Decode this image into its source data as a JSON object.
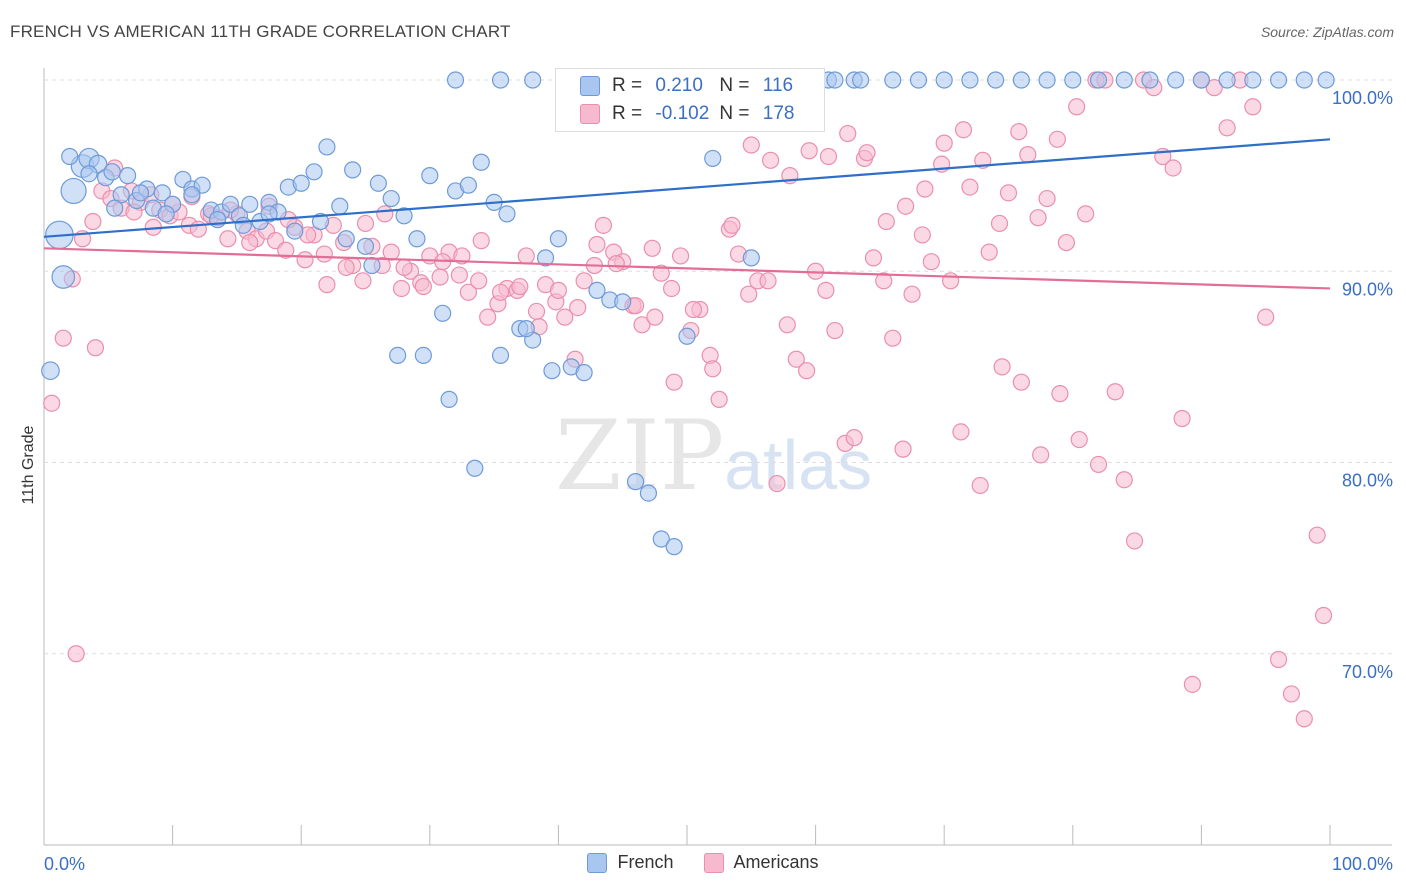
{
  "header": {
    "title": "FRENCH VS AMERICAN 11TH GRADE CORRELATION CHART",
    "source": "Source: ZipAtlas.com"
  },
  "watermark": {
    "zip": "ZIP",
    "atlas": "atlas"
  },
  "legend": {
    "rows": [
      {
        "r_label": "R =",
        "r_value": "0.210",
        "n_label": "N =",
        "n_value": "116"
      },
      {
        "r_label": "R =",
        "r_value": "-0.102",
        "n_label": "N =",
        "n_value": "178"
      }
    ]
  },
  "bottom_legend": {
    "french": "French",
    "americans": "Americans"
  },
  "colors": {
    "french_fill": "#a9c6f0",
    "french_stroke": "#6e9bd8",
    "french_line": "#2f6fc9",
    "american_fill": "#f7b9cd",
    "american_stroke": "#ea8fae",
    "american_line": "#e26d97",
    "tick_label": "#3a6fc4",
    "grid": "#dddddd",
    "axis": "#bbbbbb"
  },
  "chart_data": {
    "type": "scatter",
    "title": "FRENCH VS AMERICAN 11TH GRADE CORRELATION CHART",
    "xlabel": "",
    "ylabel": "11th Grade",
    "xlim": [
      0,
      100
    ],
    "ylim": [
      59.5,
      101
    ],
    "x_tick_labels": [
      "0.0%",
      "100.0%"
    ],
    "y_ticks": [
      {
        "value": 100,
        "label": "100.0%"
      },
      {
        "value": 90,
        "label": "90.0%"
      },
      {
        "value": 80,
        "label": "80.0%"
      },
      {
        "value": 70,
        "label": "70.0%"
      }
    ],
    "trendlines": [
      {
        "series": "French",
        "x": [
          0,
          100
        ],
        "y": [
          91.8,
          96.9
        ]
      },
      {
        "series": "Americans",
        "x": [
          0,
          100
        ],
        "y": [
          91.2,
          89.1
        ]
      }
    ],
    "series": [
      {
        "name": "French",
        "x": [
          0.5,
          1.2,
          1.5,
          2.3,
          3.0,
          3.5,
          4.2,
          4.8,
          5.3,
          6.0,
          6.5,
          7.2,
          8.0,
          8.5,
          9.2,
          10.0,
          10.8,
          11.5,
          12.3,
          13.0,
          13.8,
          14.5,
          15.2,
          16.0,
          16.8,
          17.5,
          18.2,
          19.0,
          20.0,
          21.0,
          22.0,
          23.0,
          24.0,
          25.0,
          26.0,
          27.0,
          28.0,
          29.0,
          30.0,
          31.0,
          32.0,
          33.0,
          34.0,
          35.0,
          36.0,
          37.0,
          38.0,
          39.0,
          40.0,
          41.0,
          42.0,
          43.0,
          44.0,
          45.0,
          46.0,
          47.0,
          48.0,
          49.0,
          50.0,
          52.0,
          55.0,
          57.0,
          59.0,
          61.0,
          63.0,
          32.0,
          35.5,
          38.0,
          42.5,
          45.0,
          47.5,
          50.0,
          51.5,
          55.5,
          57.5,
          59.5,
          61.5,
          63.5,
          66.0,
          68.0,
          70.0,
          72.0,
          74.0,
          76.0,
          78.0,
          80.0,
          82.0,
          84.0,
          86.0,
          88.0,
          90.0,
          92.0,
          94.0,
          96.0,
          98.0,
          99.7,
          2.0,
          3.5,
          5.5,
          7.5,
          9.5,
          11.5,
          13.5,
          15.5,
          17.5,
          19.5,
          21.5,
          23.5,
          25.5,
          27.5,
          29.5,
          31.5,
          33.5,
          35.5,
          37.5,
          39.5
        ],
        "y": [
          84.8,
          91.9,
          89.7,
          94.2,
          95.5,
          95.9,
          95.6,
          94.9,
          95.2,
          94.0,
          95.0,
          93.7,
          94.3,
          93.3,
          94.1,
          93.5,
          94.8,
          94.3,
          94.5,
          93.2,
          93.1,
          93.5,
          92.9,
          93.5,
          92.6,
          93.6,
          93.1,
          94.4,
          94.6,
          95.2,
          96.5,
          93.4,
          95.3,
          91.3,
          94.6,
          93.8,
          92.9,
          91.7,
          95.0,
          87.8,
          94.2,
          94.5,
          95.7,
          93.6,
          93.0,
          87.0,
          86.4,
          90.7,
          91.7,
          85.0,
          84.7,
          89.0,
          88.5,
          88.4,
          79.0,
          78.4,
          76.0,
          75.6,
          86.6,
          95.9,
          90.7,
          100,
          100,
          100,
          100,
          100,
          100,
          100,
          100,
          100,
          100,
          100,
          100,
          100,
          100,
          100,
          100,
          100,
          100,
          100,
          100,
          100,
          100,
          100,
          100,
          100,
          100,
          100,
          100,
          100,
          100,
          100,
          100,
          100,
          100,
          100,
          96.0,
          95.1,
          93.3,
          94.1,
          93.0,
          94.0,
          92.7,
          92.4,
          93.0,
          92.1,
          92.6,
          91.7,
          90.3,
          85.6,
          85.6,
          83.3,
          79.7,
          85.6,
          87.0,
          84.8
        ],
        "sizes": [
          14,
          22,
          18,
          20,
          18,
          16,
          14,
          13,
          13,
          12,
          12,
          12,
          12,
          12,
          12,
          12,
          12,
          12,
          12,
          12,
          12,
          12,
          12,
          12,
          12,
          12,
          12,
          12,
          12,
          12,
          12,
          12,
          12,
          12,
          12,
          12,
          12,
          12,
          12,
          12,
          12,
          12,
          12,
          12,
          12,
          12,
          12,
          12,
          12,
          12,
          12,
          12,
          12,
          12,
          12,
          12,
          12,
          12,
          12,
          12,
          12,
          12,
          12,
          12,
          12,
          12,
          12,
          12,
          12,
          12,
          12,
          12,
          12,
          12,
          12,
          12,
          12,
          12,
          12,
          12,
          12,
          12,
          12,
          12,
          12,
          12,
          12,
          12,
          12,
          12,
          12,
          12,
          12,
          12,
          12,
          12,
          12,
          12,
          12,
          12,
          12,
          12,
          12,
          12,
          12,
          12,
          12,
          12,
          12,
          12,
          12,
          12,
          12,
          12,
          12,
          12
        ]
      },
      {
        "name": "Americans",
        "x": [
          0.6,
          1.5,
          2.2,
          3.0,
          3.8,
          4.5,
          5.2,
          6.0,
          6.8,
          7.5,
          8.3,
          9.0,
          9.8,
          10.5,
          11.3,
          12.0,
          12.8,
          13.5,
          14.3,
          15.0,
          15.8,
          16.5,
          17.3,
          18.0,
          18.8,
          19.5,
          20.3,
          21.0,
          21.8,
          22.5,
          23.3,
          24.0,
          24.8,
          25.5,
          26.3,
          27.0,
          27.8,
          28.5,
          29.3,
          30.0,
          30.8,
          31.5,
          32.3,
          33.0,
          33.8,
          34.5,
          35.3,
          36.0,
          36.8,
          37.5,
          38.3,
          39.0,
          39.8,
          40.5,
          41.3,
          42.0,
          42.8,
          43.5,
          44.3,
          45.0,
          45.8,
          46.5,
          47.3,
          48.0,
          48.8,
          49.5,
          50.3,
          51.0,
          51.8,
          52.5,
          53.3,
          54.0,
          54.8,
          55.5,
          56.3,
          57.0,
          57.8,
          58.5,
          59.3,
          60.0,
          60.8,
          61.5,
          62.3,
          63.0,
          63.8,
          64.5,
          65.3,
          66.0,
          66.8,
          67.5,
          68.3,
          69.0,
          69.8,
          70.5,
          71.3,
          72.0,
          72.8,
          73.5,
          74.3,
          75.0,
          75.8,
          76.5,
          77.3,
          78.0,
          78.8,
          79.5,
          80.3,
          81.0,
          81.8,
          82.5,
          83.3,
          84.0,
          84.8,
          85.5,
          86.3,
          87.0,
          87.8,
          88.5,
          89.3,
          90.0,
          91.0,
          92.0,
          93.0,
          94.0,
          95.0,
          96.0,
          97.0,
          98.0,
          99.0,
          99.5,
          2.5,
          4.0,
          5.5,
          7.0,
          8.5,
          10.0,
          11.5,
          13.0,
          14.5,
          16.0,
          17.5,
          19.0,
          20.5,
          22.0,
          23.5,
          25.0,
          26.5,
          28.0,
          29.5,
          31.0,
          32.5,
          34.0,
          35.5,
          37.0,
          38.5,
          40.0,
          41.5,
          43.0,
          44.5,
          46.0,
          47.5,
          49.0,
          50.5,
          52.0,
          53.5,
          55.0,
          56.5,
          58.0,
          59.5,
          61.0,
          62.5,
          64.0,
          65.5,
          67.0,
          68.5,
          70.0,
          71.5,
          73.0,
          74.5,
          76.0,
          77.5,
          79.0,
          80.5,
          82.0
        ],
        "y": [
          83.1,
          86.5,
          89.6,
          91.7,
          92.6,
          94.2,
          93.8,
          93.3,
          94.2,
          93.6,
          94.0,
          93.2,
          92.9,
          93.1,
          92.4,
          92.2,
          93.0,
          92.8,
          91.7,
          93.0,
          92.1,
          91.7,
          92.1,
          91.6,
          91.1,
          92.3,
          90.6,
          91.9,
          90.9,
          92.4,
          91.5,
          90.3,
          89.5,
          91.3,
          90.3,
          91.0,
          89.1,
          90.0,
          89.4,
          90.8,
          89.7,
          91.0,
          89.8,
          88.9,
          89.5,
          87.6,
          88.3,
          89.1,
          89.0,
          90.8,
          87.9,
          89.3,
          88.4,
          87.6,
          85.4,
          89.5,
          90.3,
          92.4,
          91.0,
          90.5,
          88.2,
          87.2,
          91.2,
          89.9,
          89.1,
          90.8,
          86.9,
          88.0,
          85.6,
          83.3,
          92.2,
          90.9,
          88.8,
          89.5,
          89.5,
          78.9,
          87.2,
          85.4,
          84.8,
          90.0,
          89.0,
          86.9,
          81.0,
          81.3,
          95.9,
          90.7,
          89.5,
          86.5,
          80.7,
          88.8,
          91.9,
          90.5,
          95.6,
          89.5,
          81.6,
          94.4,
          78.8,
          91.0,
          92.5,
          94.1,
          97.3,
          96.1,
          92.8,
          93.8,
          96.9,
          91.5,
          98.6,
          93.0,
          100,
          100,
          83.7,
          79.1,
          75.9,
          100,
          99.6,
          96.0,
          95.4,
          82.3,
          68.4,
          100,
          99.6,
          97.5,
          100,
          98.6,
          87.6,
          69.7,
          67.9,
          66.6,
          76.2,
          72.0,
          70.0,
          86.0,
          95.4,
          93.1,
          92.3,
          93.5,
          93.9,
          92.9,
          93.2,
          91.5,
          93.4,
          92.7,
          91.9,
          89.3,
          90.2,
          92.5,
          93.0,
          90.2,
          89.2,
          90.5,
          90.8,
          91.6,
          88.9,
          89.2,
          87.1,
          89.0,
          88.1,
          91.4,
          90.4,
          88.2,
          87.6,
          84.2,
          88.0,
          84.9,
          92.4,
          96.6,
          95.8,
          95.0,
          96.3,
          96.0,
          97.2,
          96.2,
          92.6,
          93.4,
          94.3,
          96.7,
          97.4,
          95.8,
          85.0,
          84.2,
          80.4,
          83.6,
          81.2,
          79.9
        ]
      }
    ]
  }
}
